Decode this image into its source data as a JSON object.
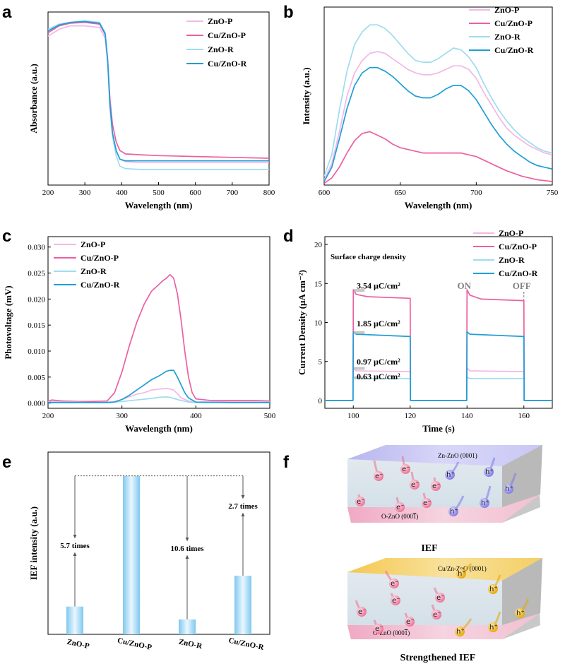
{
  "colors": {
    "zno_p": "#f3b8e6",
    "cu_zno_p": "#ec5fa2",
    "zno_r": "#9edcf0",
    "cu_zno_r": "#1f9ed8",
    "bar_edge": "#7fc8ee",
    "bar_center": "#eaf7ff"
  },
  "chart_data": [
    {
      "panel": "a",
      "type": "line",
      "xlabel": "Wavelength (nm)",
      "ylabel": "Absorbance (a.u.)",
      "xlim": [
        200,
        800
      ],
      "ylim": [
        0,
        1
      ],
      "xticks": [
        200,
        300,
        400,
        500,
        600,
        700,
        800
      ],
      "legend": "top-right",
      "series": [
        {
          "name": "ZnO-P",
          "color_key": "zno_p",
          "x": [
            200,
            230,
            260,
            300,
            340,
            355,
            362,
            368,
            375,
            385,
            395,
            410,
            450,
            500,
            600,
            700,
            800
          ],
          "y": [
            0.86,
            0.9,
            0.92,
            0.92,
            0.91,
            0.85,
            0.7,
            0.45,
            0.3,
            0.2,
            0.15,
            0.135,
            0.13,
            0.13,
            0.13,
            0.13,
            0.13
          ]
        },
        {
          "name": "Cu/ZnO-P",
          "color_key": "cu_zno_p",
          "x": [
            200,
            230,
            260,
            300,
            340,
            355,
            362,
            368,
            375,
            385,
            395,
            410,
            450,
            500,
            600,
            700,
            800
          ],
          "y": [
            0.88,
            0.92,
            0.935,
            0.94,
            0.93,
            0.87,
            0.72,
            0.5,
            0.35,
            0.25,
            0.2,
            0.18,
            0.175,
            0.17,
            0.165,
            0.16,
            0.155
          ]
        },
        {
          "name": "ZnO-R",
          "color_key": "zno_r",
          "x": [
            200,
            230,
            260,
            300,
            340,
            355,
            362,
            368,
            375,
            385,
            395,
            410,
            450,
            500,
            600,
            700,
            800
          ],
          "y": [
            0.9,
            0.93,
            0.94,
            0.95,
            0.94,
            0.88,
            0.72,
            0.45,
            0.28,
            0.17,
            0.11,
            0.095,
            0.09,
            0.09,
            0.09,
            0.09,
            0.09
          ]
        },
        {
          "name": "Cu/ZnO-R",
          "color_key": "cu_zno_r",
          "x": [
            200,
            230,
            260,
            300,
            340,
            355,
            362,
            368,
            375,
            385,
            395,
            410,
            450,
            500,
            600,
            700,
            800
          ],
          "y": [
            0.89,
            0.925,
            0.94,
            0.945,
            0.935,
            0.875,
            0.72,
            0.47,
            0.3,
            0.2,
            0.15,
            0.14,
            0.14,
            0.14,
            0.14,
            0.14,
            0.14
          ]
        }
      ]
    },
    {
      "panel": "b",
      "type": "line",
      "xlabel": "Wavelength (nm)",
      "ylabel": "Intensity (a.u.)",
      "xlim": [
        600,
        750
      ],
      "ylim": [
        0,
        1
      ],
      "xticks": [
        600,
        650,
        700,
        750
      ],
      "legend": "top-right",
      "series": [
        {
          "name": "ZnO-P",
          "color_key": "zno_p",
          "x": [
            600,
            605,
            610,
            615,
            620,
            625,
            630,
            635,
            640,
            645,
            650,
            655,
            660,
            665,
            670,
            675,
            680,
            685,
            690,
            695,
            700,
            705,
            710,
            715,
            720,
            725,
            730,
            735,
            740,
            745,
            750
          ],
          "y": [
            0.03,
            0.12,
            0.3,
            0.5,
            0.63,
            0.7,
            0.74,
            0.75,
            0.74,
            0.71,
            0.68,
            0.65,
            0.63,
            0.62,
            0.62,
            0.63,
            0.65,
            0.67,
            0.67,
            0.65,
            0.6,
            0.52,
            0.45,
            0.38,
            0.32,
            0.28,
            0.25,
            0.22,
            0.2,
            0.18,
            0.17
          ]
        },
        {
          "name": "Cu/ZnO-P",
          "color_key": "cu_zno_p",
          "x": [
            600,
            605,
            610,
            615,
            620,
            625,
            630,
            635,
            640,
            645,
            650,
            655,
            660,
            665,
            670,
            675,
            680,
            685,
            690,
            695,
            700,
            705,
            710,
            715,
            720,
            725,
            730,
            735,
            740,
            745,
            750
          ],
          "y": [
            0.01,
            0.04,
            0.1,
            0.18,
            0.25,
            0.29,
            0.3,
            0.28,
            0.26,
            0.23,
            0.21,
            0.2,
            0.19,
            0.18,
            0.18,
            0.18,
            0.18,
            0.18,
            0.18,
            0.17,
            0.16,
            0.14,
            0.12,
            0.1,
            0.08,
            0.065,
            0.05,
            0.04,
            0.03,
            0.025,
            0.02
          ]
        },
        {
          "name": "ZnO-R",
          "color_key": "zno_r",
          "x": [
            600,
            605,
            610,
            615,
            620,
            625,
            630,
            635,
            640,
            645,
            650,
            655,
            660,
            665,
            670,
            675,
            680,
            685,
            690,
            695,
            700,
            705,
            710,
            715,
            720,
            725,
            730,
            735,
            740,
            745,
            750
          ],
          "y": [
            0.05,
            0.17,
            0.42,
            0.64,
            0.79,
            0.86,
            0.9,
            0.9,
            0.88,
            0.84,
            0.79,
            0.74,
            0.7,
            0.69,
            0.69,
            0.71,
            0.74,
            0.77,
            0.76,
            0.72,
            0.66,
            0.57,
            0.49,
            0.42,
            0.36,
            0.31,
            0.27,
            0.24,
            0.21,
            0.19,
            0.18
          ]
        },
        {
          "name": "Cu/ZnO-R",
          "color_key": "cu_zno_r",
          "x": [
            600,
            605,
            610,
            615,
            620,
            625,
            630,
            635,
            640,
            645,
            650,
            655,
            660,
            665,
            670,
            675,
            680,
            685,
            690,
            695,
            700,
            705,
            710,
            715,
            720,
            725,
            730,
            735,
            740,
            745,
            750
          ],
          "y": [
            0.02,
            0.1,
            0.26,
            0.43,
            0.56,
            0.63,
            0.66,
            0.66,
            0.64,
            0.61,
            0.57,
            0.53,
            0.5,
            0.49,
            0.49,
            0.51,
            0.54,
            0.56,
            0.56,
            0.53,
            0.48,
            0.41,
            0.34,
            0.28,
            0.23,
            0.19,
            0.16,
            0.13,
            0.11,
            0.1,
            0.09
          ]
        }
      ]
    },
    {
      "panel": "c",
      "type": "line",
      "xlabel": "Wavelength (nm)",
      "ylabel": "Photovoltage (mV)",
      "xlim": [
        200,
        500
      ],
      "ylim": [
        -0.001,
        0.032
      ],
      "xticks": [
        200,
        300,
        400,
        500
      ],
      "yticks": [
        0,
        0.005,
        0.01,
        0.015,
        0.02,
        0.025,
        0.03
      ],
      "yticklabels": [
        "0.000",
        "0.005",
        "0.010",
        "0.015",
        "0.020",
        "0.025",
        "0.030"
      ],
      "legend": "top-left",
      "series": [
        {
          "name": "ZnO-P",
          "color_key": "zno_p",
          "x": [
            200,
            220,
            240,
            260,
            280,
            290,
            300,
            310,
            320,
            330,
            340,
            350,
            360,
            365,
            370,
            375,
            380,
            390,
            400,
            420,
            450,
            500
          ],
          "y": [
            0.0003,
            0.0004,
            0.0003,
            0.0002,
            0.0002,
            0.0003,
            0.0007,
            0.0012,
            0.0017,
            0.002,
            0.0025,
            0.0027,
            0.0028,
            0.0027,
            0.0025,
            0.0018,
            0.001,
            0.0004,
            0.0002,
            0.0002,
            0.0003,
            0.0002
          ]
        },
        {
          "name": "Cu/ZnO-P",
          "color_key": "cu_zno_p",
          "x": [
            200,
            205,
            220,
            240,
            260,
            280,
            290,
            300,
            310,
            320,
            330,
            340,
            350,
            355,
            360,
            365,
            370,
            375,
            380,
            385,
            390,
            395,
            400,
            420,
            450,
            480,
            500
          ],
          "y": [
            0.0003,
            0.0006,
            0.0004,
            0.0003,
            0.0003,
            0.0004,
            0.002,
            0.006,
            0.011,
            0.0155,
            0.019,
            0.0215,
            0.0228,
            0.0235,
            0.024,
            0.0247,
            0.024,
            0.021,
            0.016,
            0.01,
            0.005,
            0.002,
            0.0008,
            0.0005,
            0.0005,
            0.0005,
            0.0004
          ]
        },
        {
          "name": "ZnO-R",
          "color_key": "zno_r",
          "x": [
            200,
            230,
            260,
            290,
            300,
            320,
            340,
            350,
            360,
            365,
            370,
            380,
            390,
            400,
            450,
            500
          ],
          "y": [
            0.0002,
            0.0002,
            0.0001,
            0.0002,
            0.0003,
            0.0006,
            0.0009,
            0.0011,
            0.0012,
            0.0011,
            0.0009,
            0.0005,
            0.0002,
            0.0001,
            0.0001,
            0.0002
          ]
        },
        {
          "name": "Cu/ZnO-R",
          "color_key": "cu_zno_r",
          "x": [
            200,
            240,
            280,
            290,
            300,
            310,
            320,
            330,
            340,
            350,
            360,
            365,
            370,
            375,
            380,
            385,
            390,
            400,
            450,
            500
          ],
          "y": [
            0.0001,
            0.0001,
            0.0001,
            0.0002,
            0.0007,
            0.0015,
            0.0025,
            0.0035,
            0.0045,
            0.0052,
            0.0061,
            0.0063,
            0.0063,
            0.005,
            0.0035,
            0.002,
            0.001,
            0.0002,
            0.0001,
            0.0001
          ]
        }
      ]
    },
    {
      "panel": "d",
      "type": "line",
      "xlabel": "Time (s)",
      "ylabel": "Current Density (μA cm⁻²)",
      "xlim": [
        90,
        170
      ],
      "ylim": [
        -1,
        21
      ],
      "xticks": [
        100,
        120,
        140,
        160
      ],
      "yticks": [
        0,
        5,
        10,
        15,
        20
      ],
      "legend": "top-right",
      "annotations": {
        "title": "Surface charge density",
        "charges": [
          "3.54 μC/cm²",
          "1.85 μC/cm²",
          "0.97 μC/cm²",
          "0.63 μC/cm²"
        ],
        "on": "ON",
        "off": "OFF"
      },
      "series": [
        {
          "name": "ZnO-P",
          "color_key": "zno_p",
          "x": [
            90,
            99.9,
            100,
            101,
            120,
            120.1,
            139.9,
            140,
            141,
            160,
            160.1,
            170
          ],
          "y": [
            0,
            0,
            4.2,
            3.8,
            3.7,
            0,
            0,
            4.2,
            3.8,
            3.7,
            0,
            0
          ]
        },
        {
          "name": "Cu/ZnO-P",
          "color_key": "cu_zno_p",
          "x": [
            90,
            99.9,
            100,
            101,
            105,
            120,
            120.1,
            139.9,
            140,
            141,
            145,
            160,
            160.1,
            170
          ],
          "y": [
            0,
            0,
            14.2,
            13.6,
            13.3,
            13.1,
            0,
            0,
            14.2,
            13.5,
            13.0,
            12.8,
            0,
            0
          ]
        },
        {
          "name": "ZnO-R",
          "color_key": "zno_r",
          "x": [
            90,
            99.9,
            100,
            101,
            120,
            120.1,
            139.9,
            140,
            141,
            160,
            160.1,
            170
          ],
          "y": [
            0,
            0,
            3.0,
            2.8,
            2.8,
            0,
            0,
            3.0,
            2.8,
            2.8,
            0,
            0
          ]
        },
        {
          "name": "Cu/ZnO-R",
          "color_key": "cu_zno_r",
          "x": [
            90,
            99.9,
            100,
            101,
            120,
            120.1,
            139.9,
            140,
            141,
            160,
            160.1,
            170
          ],
          "y": [
            0,
            0,
            8.8,
            8.5,
            8.2,
            0,
            0,
            8.8,
            8.5,
            8.2,
            0,
            0
          ]
        }
      ]
    },
    {
      "panel": "e",
      "type": "bar",
      "ylabel": "IEF intensity (a.u.)",
      "categories": [
        "ZnO-P",
        "Cu/ZnO-P",
        "ZnO-R",
        "Cu/ZnO-R"
      ],
      "values": [
        0.175,
        1.0,
        0.094,
        0.37
      ],
      "ylim": [
        0,
        1.15
      ],
      "annotations": [
        "5.7 times",
        "10.6 times",
        "2.7 times"
      ]
    }
  ],
  "schematic": {
    "panel": "f",
    "top": {
      "top_face_label": "Zn-ZnO (0001)",
      "bottom_face_label": "O-ZnO (000",
      "bottom_face_bar": "1",
      "bottom_face_close": ")",
      "title": "IEF"
    },
    "bottom": {
      "top_face_label": "Cu/Zn-ZnO (0001)",
      "bottom_face_label": "O-ZnO (000",
      "bottom_face_bar": "1",
      "bottom_face_close": ")",
      "title": "Strengthened IEF"
    },
    "electron_symbol": "e⁻",
    "hole_symbol": "h⁺"
  }
}
